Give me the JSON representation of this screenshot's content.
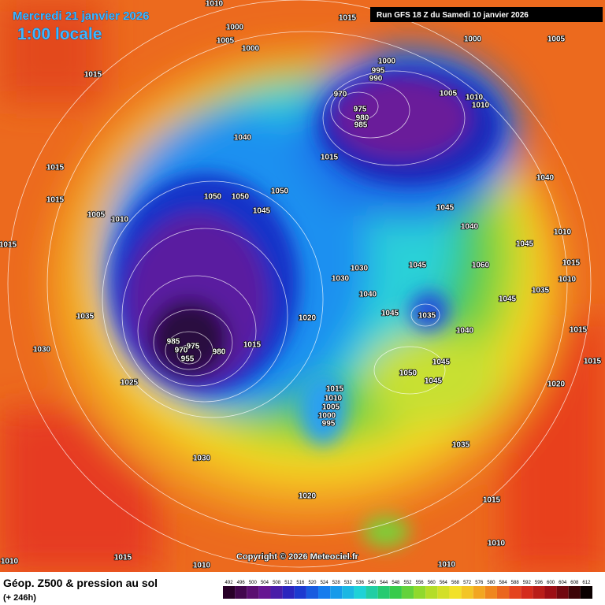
{
  "header": {
    "date": "Mercredi 21 janvier 2026",
    "time": "1:00 locale",
    "run": "Run GFS 18 Z du Samedi 10 janvier 2026"
  },
  "footer": {
    "title": "Géop. Z500 & pression au sol",
    "lead": "(+ 246h)",
    "copyright": "Copyright © 2026 Meteociel.fr"
  },
  "legend": {
    "labels": [
      492,
      496,
      500,
      504,
      508,
      512,
      516,
      520,
      524,
      528,
      532,
      536,
      540,
      544,
      548,
      552,
      556,
      560,
      564,
      568,
      572,
      576,
      580,
      584,
      588,
      592,
      596,
      600,
      604,
      608,
      612
    ]
  },
  "pressure_labels": [
    "1010",
    "1000",
    "1005",
    "1000",
    "1015",
    "1015",
    "1000",
    "1005",
    "1000",
    "995",
    "990",
    "970",
    "975",
    "980",
    "985",
    "1005",
    "1010",
    "1010",
    "1040",
    "1015",
    "1015",
    "1040",
    "1015",
    "1050",
    "1050",
    "1050",
    "1045",
    "1045",
    "1005",
    "1010",
    "1040",
    "1010",
    "1015",
    "1045",
    "1045",
    "1030",
    "1060",
    "1015",
    "1010",
    "1030",
    "1040",
    "1035",
    "1045",
    "1035",
    "1045",
    "1035",
    "1020",
    "1040",
    "1015",
    "985",
    "975",
    "970",
    "1015",
    "980",
    "955",
    "1030",
    "1015",
    "1045",
    "1050",
    "1045",
    "1025",
    "1020",
    "1015",
    "1010",
    "1005",
    "1000",
    "995",
    "1035",
    "1030",
    "1020",
    "1015",
    "1010",
    "1015",
    "1010",
    "1010",
    "1010"
  ]
}
